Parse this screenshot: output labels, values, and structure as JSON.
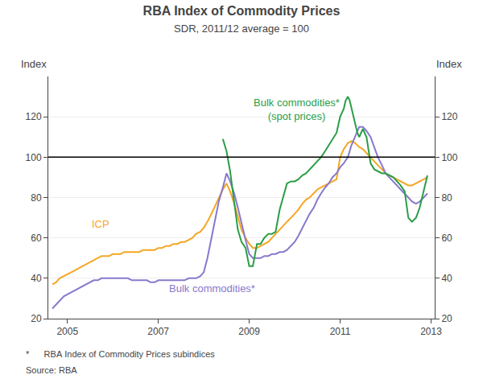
{
  "chart_data": {
    "type": "line",
    "title": "RBA Index of Commodity Prices",
    "subtitle": "SDR, 2011/12 average = 100",
    "ylabel": "Index",
    "y2label": "Index",
    "footnotes": [
      "*      RBA Index of Commodity Prices subindices",
      "Source: RBA"
    ],
    "xlim": [
      2004.58,
      2013.08
    ],
    "xticks": [
      2005,
      2007,
      2009,
      2011,
      2013
    ],
    "ylim": [
      20,
      140
    ],
    "yticks": [
      20,
      40,
      60,
      80,
      100,
      120
    ],
    "y2lim": [
      20,
      140
    ],
    "y2ticks": [
      20,
      40,
      60,
      80,
      100,
      120
    ],
    "grid": "y",
    "reference_line": 100,
    "series": [
      {
        "color": "#f5a623",
        "x": [
          2004.67,
          2004.75,
          2004.83,
          2004.92,
          2005.0,
          2005.08,
          2005.17,
          2005.25,
          2005.33,
          2005.42,
          2005.5,
          2005.58,
          2005.67,
          2005.75,
          2005.83,
          2005.92,
          2006.0,
          2006.08,
          2006.17,
          2006.25,
          2006.33,
          2006.42,
          2006.5,
          2006.58,
          2006.67,
          2006.75,
          2006.83,
          2006.92,
          2007.0,
          2007.08,
          2007.17,
          2007.25,
          2007.33,
          2007.42,
          2007.5,
          2007.58,
          2007.67,
          2007.75,
          2007.83,
          2007.92,
          2008.0,
          2008.08,
          2008.17,
          2008.25,
          2008.33,
          2008.42,
          2008.5,
          2008.58,
          2008.67,
          2008.75,
          2008.83,
          2008.92,
          2009.0,
          2009.08,
          2009.17,
          2009.25,
          2009.33,
          2009.42,
          2009.5,
          2009.58,
          2009.67,
          2009.75,
          2009.83,
          2009.92,
          2010.0,
          2010.08,
          2010.17,
          2010.25,
          2010.33,
          2010.42,
          2010.5,
          2010.58,
          2010.67,
          2010.75,
          2010.83,
          2010.92,
          2011.0,
          2011.08,
          2011.17,
          2011.25,
          2011.33,
          2011.42,
          2011.5,
          2011.58,
          2011.67,
          2011.75,
          2011.83,
          2011.92,
          2012.0,
          2012.08,
          2012.17,
          2012.25,
          2012.33,
          2012.42,
          2012.5,
          2012.58,
          2012.67,
          2012.75,
          2012.83,
          2012.92
        ],
        "values": [
          37,
          38,
          40,
          41,
          42,
          43,
          44,
          45,
          46,
          47,
          48,
          49,
          50,
          51,
          51,
          51,
          52,
          52,
          52,
          53,
          53,
          53,
          53,
          53,
          54,
          54,
          54,
          54,
          55,
          55,
          56,
          56,
          57,
          57,
          58,
          58,
          59,
          60,
          62,
          63,
          65,
          68,
          72,
          76,
          80,
          84,
          87,
          83,
          77,
          70,
          64,
          60,
          57,
          55,
          55,
          56,
          57,
          58,
          60,
          62,
          64,
          66,
          68,
          70,
          72,
          74,
          77,
          79,
          80,
          82,
          84,
          85,
          86,
          87,
          88,
          89,
          100,
          104,
          107,
          108,
          107,
          105,
          104,
          102,
          100,
          98,
          96,
          94,
          92,
          91,
          90,
          89,
          88,
          87,
          86,
          86,
          87,
          88,
          89,
          90
        ]
      },
      {
        "color": "#8878cc",
        "x": [
          2004.67,
          2004.75,
          2004.83,
          2004.92,
          2005.0,
          2005.08,
          2005.17,
          2005.25,
          2005.33,
          2005.42,
          2005.5,
          2005.58,
          2005.67,
          2005.75,
          2005.83,
          2005.92,
          2006.0,
          2006.08,
          2006.17,
          2006.25,
          2006.33,
          2006.42,
          2006.5,
          2006.58,
          2006.67,
          2006.75,
          2006.83,
          2006.92,
          2007.0,
          2007.08,
          2007.17,
          2007.25,
          2007.33,
          2007.42,
          2007.5,
          2007.58,
          2007.67,
          2007.75,
          2007.83,
          2007.92,
          2008.0,
          2008.08,
          2008.17,
          2008.25,
          2008.33,
          2008.42,
          2008.5,
          2008.58,
          2008.67,
          2008.75,
          2008.83,
          2008.92,
          2009.0,
          2009.08,
          2009.17,
          2009.25,
          2009.33,
          2009.42,
          2009.5,
          2009.58,
          2009.67,
          2009.75,
          2009.83,
          2009.92,
          2010.0,
          2010.08,
          2010.17,
          2010.25,
          2010.33,
          2010.42,
          2010.5,
          2010.58,
          2010.67,
          2010.75,
          2010.83,
          2010.92,
          2011.0,
          2011.08,
          2011.17,
          2011.25,
          2011.33,
          2011.42,
          2011.5,
          2011.58,
          2011.67,
          2011.75,
          2011.83,
          2011.92,
          2012.0,
          2012.08,
          2012.17,
          2012.25,
          2012.33,
          2012.42,
          2012.5,
          2012.58,
          2012.67,
          2012.75,
          2012.83,
          2012.92
        ],
        "values": [
          25,
          27,
          29,
          31,
          32,
          33,
          34,
          35,
          36,
          37,
          38,
          39,
          39,
          40,
          40,
          40,
          40,
          40,
          40,
          40,
          40,
          39,
          39,
          39,
          39,
          39,
          38,
          38,
          39,
          39,
          39,
          39,
          39,
          39,
          39,
          39,
          40,
          40,
          40,
          41,
          43,
          50,
          60,
          70,
          78,
          85,
          92,
          88,
          82,
          75,
          67,
          59,
          52,
          50,
          50,
          50,
          51,
          51,
          52,
          52,
          53,
          53,
          54,
          56,
          58,
          61,
          65,
          68,
          72,
          75,
          79,
          82,
          85,
          87,
          90,
          92,
          95,
          97,
          100,
          106,
          110,
          115,
          115,
          113,
          110,
          105,
          100,
          96,
          92,
          90,
          88,
          86,
          84,
          82,
          80,
          78,
          77,
          78,
          80,
          82
        ]
      },
      {
        "color": "#2a9e46",
        "x": [
          2008.42,
          2008.5,
          2008.58,
          2008.67,
          2008.75,
          2008.83,
          2008.92,
          2009.0,
          2009.08,
          2009.17,
          2009.25,
          2009.33,
          2009.42,
          2009.5,
          2009.58,
          2009.67,
          2009.75,
          2009.83,
          2009.92,
          2010.0,
          2010.08,
          2010.17,
          2010.25,
          2010.33,
          2010.42,
          2010.5,
          2010.58,
          2010.67,
          2010.75,
          2010.83,
          2010.92,
          2011.0,
          2011.04,
          2011.08,
          2011.12,
          2011.17,
          2011.21,
          2011.25,
          2011.29,
          2011.33,
          2011.38,
          2011.42,
          2011.46,
          2011.5,
          2011.58,
          2011.67,
          2011.75,
          2011.83,
          2011.92,
          2012.0,
          2012.08,
          2012.17,
          2012.25,
          2012.33,
          2012.42,
          2012.5,
          2012.58,
          2012.67,
          2012.75,
          2012.83,
          2012.92
        ],
        "values": [
          109,
          103,
          93,
          78,
          64,
          58,
          55,
          46,
          46,
          57,
          57,
          60,
          62,
          62,
          63,
          74,
          80,
          87,
          88,
          88,
          89,
          91,
          92,
          94,
          96,
          98,
          100,
          103,
          106,
          109,
          112,
          120,
          122,
          124,
          128,
          130,
          128,
          124,
          120,
          116,
          112,
          110,
          112,
          114,
          110,
          97,
          94,
          93,
          92,
          92,
          91,
          90,
          88,
          86,
          83,
          70,
          68,
          70,
          75,
          82,
          91
        ]
      }
    ],
    "annotations": [
      {
        "text": "ICP",
        "x": 2005.5,
        "y": 63,
        "color": "#f5a623"
      },
      {
        "text": "Bulk commodities*",
        "x": 2007.2,
        "y": 31,
        "color": "#8878cc"
      },
      {
        "text": "Bulk commodities*\n(spot prices)",
        "x": 2010.05,
        "y": 131,
        "color": "#2a9e46"
      }
    ]
  }
}
